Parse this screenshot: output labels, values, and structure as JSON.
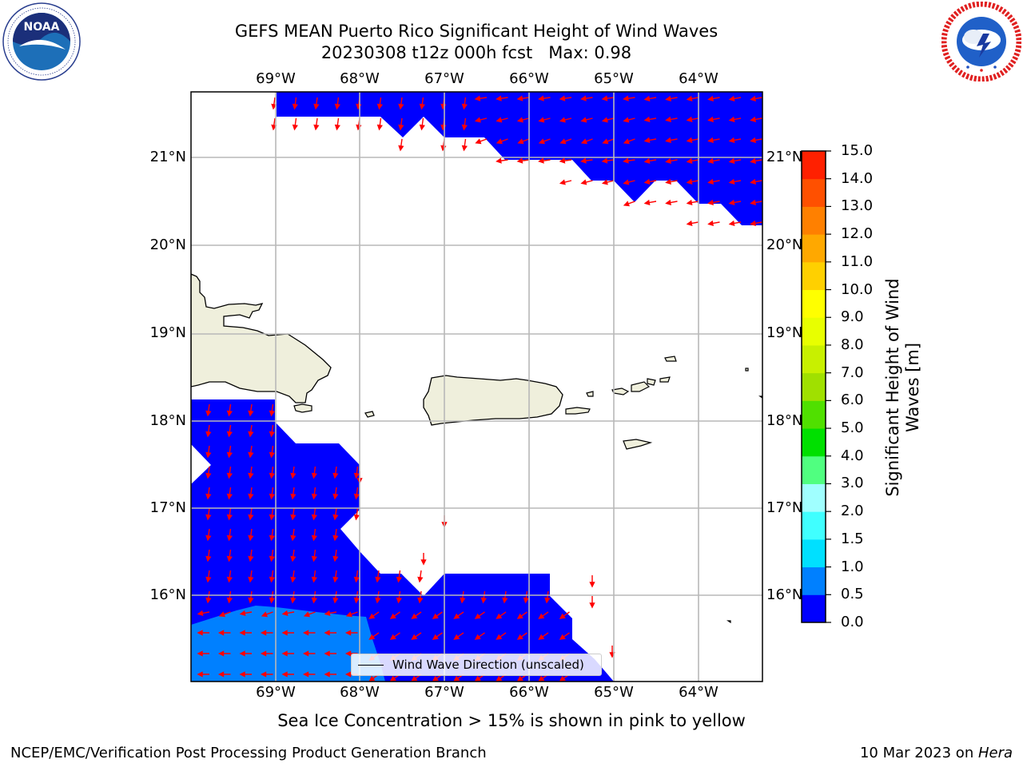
{
  "title": {
    "line1": "GEFS MEAN Puerto Rico Significant Height of Wind Waves",
    "line2": "20230308 t12z 000h fcst   Max: 0.98"
  },
  "logos": {
    "noaa": {
      "text": "NOAA",
      "ring_text": "NATIONAL OCEANIC AND ATMOSPHERIC ADMINISTRATION · U.S. DEPARTMENT OF COMMERCE"
    },
    "nws": {
      "ring_text": "NATIONAL WEATHER SERVICE"
    }
  },
  "map": {
    "lon_ticks": [
      "69°W",
      "68°W",
      "67°W",
      "66°W",
      "65°W",
      "64°W"
    ],
    "lat_ticks": [
      "21°N",
      "20°N",
      "19°N",
      "18°N",
      "17°N",
      "16°N"
    ],
    "lon_range": [
      -70.0,
      -63.25
    ],
    "lat_range": [
      15.0,
      21.75
    ],
    "grid": true,
    "colors": {
      "land": "#efefdc",
      "wave_0_0.5": "#0000ff",
      "wave_0.5_1.0": "#0080ff",
      "arrow": "#ff0000"
    }
  },
  "legend": {
    "label": "Wind Wave Direction (unscaled)"
  },
  "colorbar": {
    "label": "Significant Height of Wind Waves [m]",
    "label_lines": [
      "Significant Height of Wind",
      "Waves [m]"
    ],
    "ticks": [
      "0.0",
      "0.5",
      "1.0",
      "1.5",
      "2.0",
      "3.0",
      "4.0",
      "5.0",
      "6.0",
      "7.0",
      "8.0",
      "9.0",
      "10.0",
      "11.0",
      "12.0",
      "13.0",
      "14.0",
      "15.0"
    ],
    "colors": [
      "#0000ff",
      "#0080ff",
      "#00e0ff",
      "#40ffff",
      "#a0ffff",
      "#50ff80",
      "#00e000",
      "#50e000",
      "#a0e000",
      "#c8f000",
      "#e8ff00",
      "#ffff00",
      "#ffd000",
      "#ffa800",
      "#ff8000",
      "#ff5000",
      "#ff2000"
    ]
  },
  "caption": "Sea Ice Concentration > 15% is shown in pink to yellow",
  "footer": {
    "left": "NCEP/EMC/Verification Post Processing Product Generation Branch",
    "right_prefix": "10 Mar 2023 on ",
    "right_host": "Hera"
  }
}
